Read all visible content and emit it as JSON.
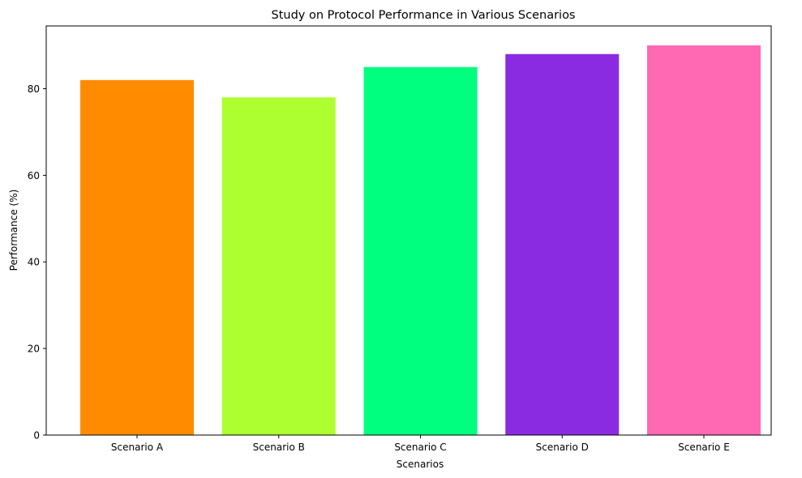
{
  "chart_data": {
    "type": "bar",
    "title": "Study on Protocol Performance in Various Scenarios",
    "xlabel": "Scenarios",
    "ylabel": "Performance (%)",
    "categories": [
      "Scenario A",
      "Scenario B",
      "Scenario C",
      "Scenario D",
      "Scenario E"
    ],
    "values": [
      82,
      78,
      85,
      88,
      90
    ],
    "colors": [
      "#ff8c00",
      "#adff2f",
      "#00ff7f",
      "#8a2be2",
      "#ff69b4"
    ],
    "ylim": [
      0,
      94.5
    ],
    "yticks": [
      0,
      20,
      40,
      60,
      80
    ],
    "ytick_labels": [
      "0",
      "20",
      "40",
      "60",
      "80"
    ],
    "grid": false,
    "legend": "none"
  }
}
